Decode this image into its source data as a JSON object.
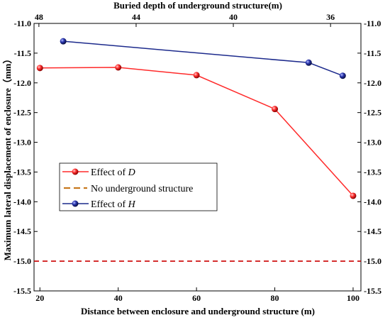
{
  "chart_data": {
    "type": "line",
    "xlabel_bottom": "Distance between enclosure and underground structure (m)",
    "xlabel_top": "Buried depth of underground structure(m)",
    "ylabel": "Maximum lateral displacement of enclosure（mm）",
    "x_bottom_lim": [
      18.5,
      102
    ],
    "x_top_lim": [
      48.2,
      34.75
    ],
    "ylim": [
      -15.5,
      -11.0
    ],
    "y_ticks": [
      "-11.0",
      "-11.5",
      "-12.0",
      "-12.5",
      "-13.0",
      "-13.5",
      "-14.0",
      "-14.5",
      "-15.0",
      "-15.5"
    ],
    "x_bottom_ticks": [
      "20",
      "40",
      "60",
      "80",
      "100"
    ],
    "x_top_ticks": [
      "48",
      "44",
      "40",
      "36"
    ],
    "series": [
      {
        "name": "Effect of D",
        "name_prefix": "Effect of ",
        "name_var": "D",
        "axis": "bottom",
        "color": "#ff2a2a",
        "x": [
          20,
          40,
          60,
          80,
          100
        ],
        "y": [
          -11.75,
          -11.74,
          -11.87,
          -12.44,
          -13.9
        ]
      },
      {
        "name": "No underground structure",
        "axis": "bottom",
        "color": "#cc0000",
        "legend_color": "#c8781e",
        "style": "dashed",
        "x": [
          18.5,
          102
        ],
        "y": [
          -15.0,
          -15.0
        ]
      },
      {
        "name": "Effect of H",
        "name_prefix": "Effect of ",
        "name_var": "H",
        "axis": "top",
        "color": "#1c2a8c",
        "x": [
          47,
          36.9,
          35.5
        ],
        "y": [
          -11.3,
          -11.66,
          -11.88
        ]
      }
    ],
    "legend": "center-left",
    "grid": false
  }
}
